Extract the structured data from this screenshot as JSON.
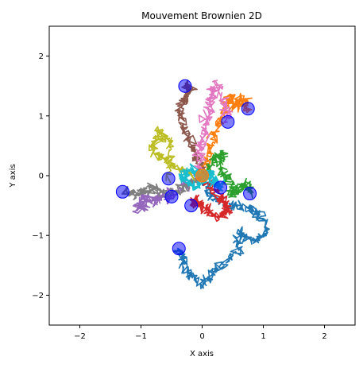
{
  "chart_data": {
    "type": "line",
    "title": "Mouvement Brownien 2D",
    "xlabel": "X axis",
    "ylabel": "Y axis",
    "xlim": [
      -2.5,
      2.5
    ],
    "ylim": [
      -2.5,
      2.5
    ],
    "xticks": [
      -2,
      -1,
      0,
      1,
      2
    ],
    "yticks": [
      -2,
      -1,
      0,
      1,
      2
    ],
    "xtick_labels": [
      "−2",
      "−1",
      "0",
      "1",
      "2"
    ],
    "ytick_labels": [
      "−2",
      "−1",
      "0",
      "1",
      "2"
    ],
    "grid": false,
    "legend": "none",
    "start_point": {
      "x": 0,
      "y": 0
    },
    "start_marker_color": "#ff7f0e",
    "end_marker_color": "#0000ff",
    "series": [
      {
        "color": "#1f77b4",
        "end": [
          -0.38,
          -1.22
        ],
        "points": [
          [
            0,
            0
          ],
          [
            0.15,
            -0.35
          ],
          [
            0.45,
            -0.5
          ],
          [
            0.75,
            -0.55
          ],
          [
            0.95,
            -0.65
          ],
          [
            1.05,
            -0.95
          ],
          [
            0.85,
            -1.1
          ],
          [
            0.6,
            -0.95
          ],
          [
            0.55,
            -1.3
          ],
          [
            0.25,
            -1.55
          ],
          [
            0.05,
            -1.8
          ],
          [
            -0.25,
            -1.65
          ],
          [
            -0.3,
            -1.4
          ],
          [
            -0.38,
            -1.22
          ]
        ]
      },
      {
        "color": "#ff7f0e",
        "end": [
          0.75,
          1.12
        ],
        "points": [
          [
            0,
            0
          ],
          [
            0.1,
            0.3
          ],
          [
            0.2,
            0.7
          ],
          [
            0.35,
            1.0
          ],
          [
            0.45,
            1.35
          ],
          [
            0.55,
            1.15
          ],
          [
            0.65,
            1.3
          ],
          [
            0.75,
            1.12
          ]
        ]
      },
      {
        "color": "#2ca02c",
        "end": [
          0.78,
          -0.3
        ],
        "points": [
          [
            0,
            0
          ],
          [
            0.2,
            0.25
          ],
          [
            0.35,
            0.4
          ],
          [
            0.3,
            0.1
          ],
          [
            0.45,
            -0.05
          ],
          [
            0.5,
            -0.3
          ],
          [
            0.6,
            -0.2
          ],
          [
            0.7,
            -0.15
          ],
          [
            0.78,
            -0.3
          ]
        ]
      },
      {
        "color": "#d62728",
        "end": [
          -0.18,
          -0.5
        ],
        "points": [
          [
            0,
            0
          ],
          [
            0.2,
            -0.25
          ],
          [
            0.35,
            -0.45
          ],
          [
            0.45,
            -0.6
          ],
          [
            0.25,
            -0.7
          ],
          [
            0.05,
            -0.55
          ],
          [
            -0.1,
            -0.4
          ],
          [
            -0.18,
            -0.5
          ]
        ]
      },
      {
        "color": "#9467bd",
        "end": [
          -0.5,
          -0.35
        ],
        "points": [
          [
            0,
            0
          ],
          [
            -0.25,
            -0.15
          ],
          [
            -0.55,
            -0.3
          ],
          [
            -0.85,
            -0.45
          ],
          [
            -1.05,
            -0.55
          ],
          [
            -0.95,
            -0.35
          ],
          [
            -0.7,
            -0.4
          ],
          [
            -0.5,
            -0.35
          ]
        ]
      },
      {
        "color": "#8c564b",
        "end": [
          -0.28,
          1.5
        ],
        "points": [
          [
            0,
            0
          ],
          [
            -0.1,
            0.35
          ],
          [
            -0.25,
            0.65
          ],
          [
            -0.35,
            0.95
          ],
          [
            -0.3,
            1.25
          ],
          [
            -0.2,
            1.45
          ],
          [
            -0.28,
            1.5
          ]
        ]
      },
      {
        "color": "#e377c2",
        "end": [
          0.42,
          0.9
        ],
        "points": [
          [
            0,
            0
          ],
          [
            -0.05,
            0.4
          ],
          [
            0.05,
            0.75
          ],
          [
            0.1,
            1.05
          ],
          [
            0.15,
            1.35
          ],
          [
            0.2,
            1.55
          ],
          [
            0.35,
            1.2
          ],
          [
            0.42,
            0.9
          ]
        ]
      },
      {
        "color": "#7f7f7f",
        "end": [
          -1.3,
          -0.27
        ],
        "points": [
          [
            0,
            0
          ],
          [
            -0.25,
            -0.2
          ],
          [
            -0.55,
            -0.3
          ],
          [
            -0.8,
            -0.2
          ],
          [
            -1.05,
            -0.3
          ],
          [
            -1.3,
            -0.27
          ]
        ]
      },
      {
        "color": "#bcbd22",
        "end": [
          -0.55,
          -0.05
        ],
        "points": [
          [
            0,
            0
          ],
          [
            -0.35,
            0.1
          ],
          [
            -0.6,
            0.25
          ],
          [
            -0.8,
            0.45
          ],
          [
            -0.7,
            0.75
          ],
          [
            -0.5,
            0.55
          ],
          [
            -0.55,
            -0.05
          ]
        ]
      },
      {
        "color": "#17becf",
        "end": [
          0.3,
          -0.2
        ],
        "points": [
          [
            0,
            0
          ],
          [
            -0.2,
            0.1
          ],
          [
            -0.35,
            -0.05
          ],
          [
            -0.1,
            -0.2
          ],
          [
            0.1,
            0.05
          ],
          [
            0.2,
            -0.1
          ],
          [
            0.3,
            -0.2
          ]
        ]
      }
    ]
  }
}
